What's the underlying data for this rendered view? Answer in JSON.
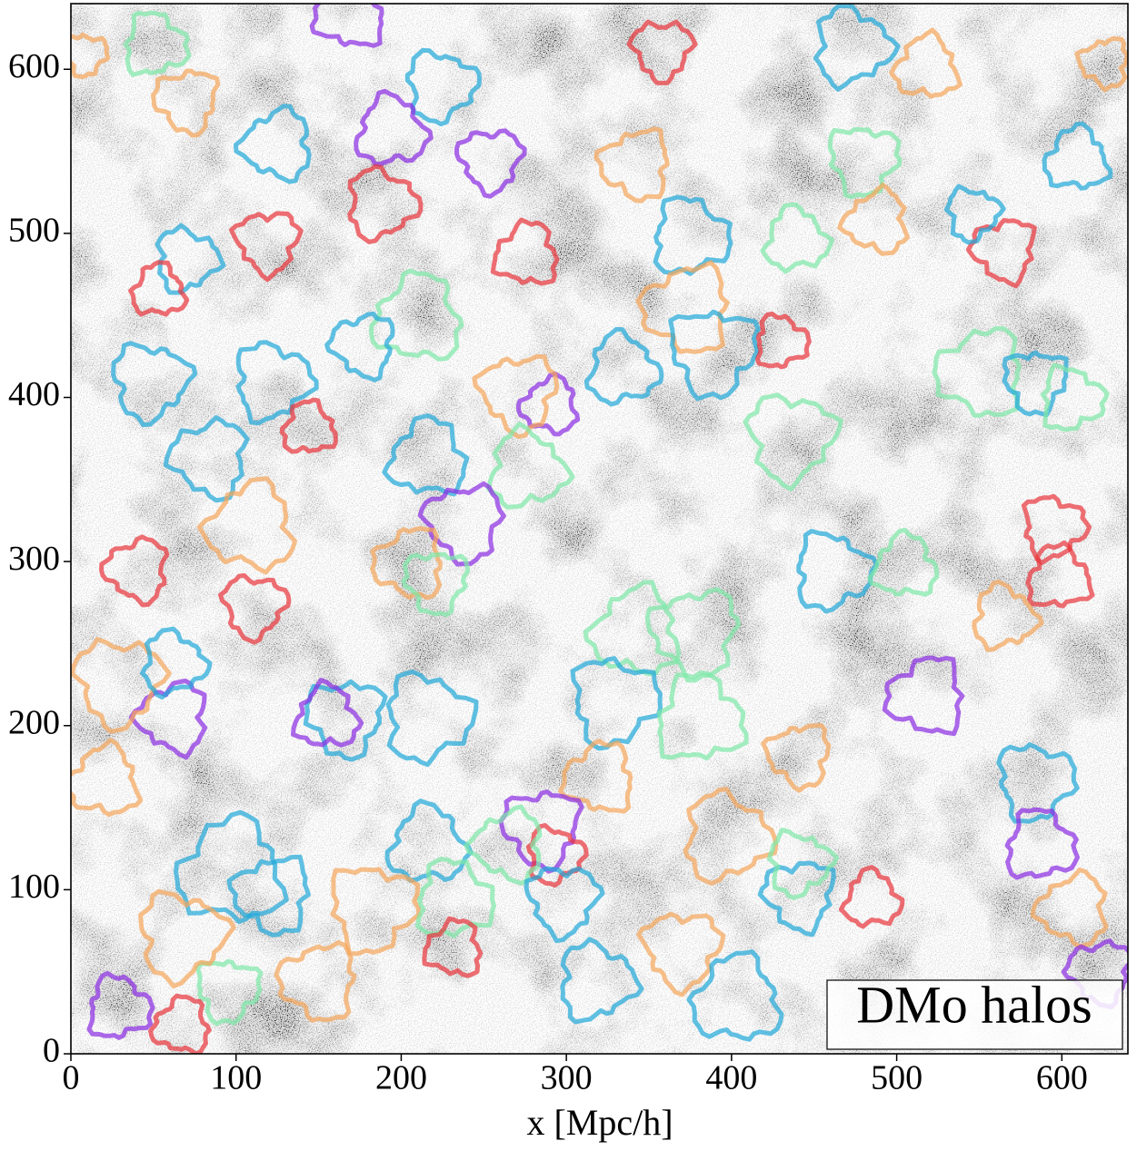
{
  "chart_data": {
    "type": "halo-map",
    "xlabel": "x [Mpc/h]",
    "annotation": "DMo halos",
    "xlim": [
      0,
      640
    ],
    "ylim": [
      0,
      640
    ],
    "xticks": [
      0,
      100,
      200,
      300,
      400,
      500,
      600
    ],
    "yticks": [
      0,
      100,
      200,
      300,
      400,
      500,
      600
    ],
    "halos": [
      {
        "x": 358,
        "y": 612,
        "r": 17,
        "color": "#e8333a"
      },
      {
        "x": 473,
        "y": 614,
        "r": 22,
        "color": "#1fa8d8"
      },
      {
        "x": 518,
        "y": 601,
        "r": 18,
        "color": "#f5a55a"
      },
      {
        "x": 626,
        "y": 604,
        "r": 14,
        "color": "#f5a55a"
      },
      {
        "x": 9,
        "y": 609,
        "r": 12,
        "color": "#f5a55a"
      },
      {
        "x": 51,
        "y": 615,
        "r": 18,
        "color": "#7de8a8"
      },
      {
        "x": 169,
        "y": 634,
        "r": 20,
        "color": "#8a2be2"
      },
      {
        "x": 70,
        "y": 581,
        "r": 18,
        "color": "#f5a55a"
      },
      {
        "x": 224,
        "y": 590,
        "r": 20,
        "color": "#1fa8d8"
      },
      {
        "x": 194,
        "y": 562,
        "r": 20,
        "color": "#8a2be2"
      },
      {
        "x": 125,
        "y": 554,
        "r": 20,
        "color": "#1fa8d8"
      },
      {
        "x": 254,
        "y": 545,
        "r": 18,
        "color": "#8a2be2"
      },
      {
        "x": 188,
        "y": 518,
        "r": 20,
        "color": "#e8333a"
      },
      {
        "x": 609,
        "y": 545,
        "r": 18,
        "color": "#1fa8d8"
      },
      {
        "x": 342,
        "y": 542,
        "r": 20,
        "color": "#f5a55a"
      },
      {
        "x": 480,
        "y": 545,
        "r": 20,
        "color": "#7de8a8"
      },
      {
        "x": 375,
        "y": 498,
        "r": 22,
        "color": "#1fa8d8"
      },
      {
        "x": 276,
        "y": 487,
        "r": 18,
        "color": "#e8333a"
      },
      {
        "x": 565,
        "y": 490,
        "r": 18,
        "color": "#e8333a"
      },
      {
        "x": 546,
        "y": 512,
        "r": 15,
        "color": "#1fa8d8"
      },
      {
        "x": 439,
        "y": 496,
        "r": 18,
        "color": "#7de8a8"
      },
      {
        "x": 488,
        "y": 507,
        "r": 18,
        "color": "#f5a55a"
      },
      {
        "x": 119,
        "y": 495,
        "r": 18,
        "color": "#e8333a"
      },
      {
        "x": 70,
        "y": 484,
        "r": 18,
        "color": "#1fa8d8"
      },
      {
        "x": 53,
        "y": 465,
        "r": 15,
        "color": "#e8333a"
      },
      {
        "x": 373,
        "y": 454,
        "r": 25,
        "color": "#f5a55a"
      },
      {
        "x": 389,
        "y": 428,
        "r": 25,
        "color": "#1fa8d8"
      },
      {
        "x": 430,
        "y": 434,
        "r": 15,
        "color": "#e8333a"
      },
      {
        "x": 210,
        "y": 448,
        "r": 25,
        "color": "#7de8a8"
      },
      {
        "x": 177,
        "y": 432,
        "r": 18,
        "color": "#1fa8d8"
      },
      {
        "x": 48,
        "y": 410,
        "r": 22,
        "color": "#1fa8d8"
      },
      {
        "x": 334,
        "y": 417,
        "r": 20,
        "color": "#1fa8d8"
      },
      {
        "x": 290,
        "y": 395,
        "r": 16,
        "color": "#8a2be2"
      },
      {
        "x": 271,
        "y": 403,
        "r": 22,
        "color": "#f5a55a"
      },
      {
        "x": 122,
        "y": 410,
        "r": 22,
        "color": "#1fa8d8"
      },
      {
        "x": 144,
        "y": 381,
        "r": 15,
        "color": "#e8333a"
      },
      {
        "x": 551,
        "y": 415,
        "r": 25,
        "color": "#7de8a8"
      },
      {
        "x": 584,
        "y": 410,
        "r": 18,
        "color": "#1fa8d8"
      },
      {
        "x": 606,
        "y": 399,
        "r": 18,
        "color": "#7de8a8"
      },
      {
        "x": 216,
        "y": 363,
        "r": 22,
        "color": "#1fa8d8"
      },
      {
        "x": 84,
        "y": 363,
        "r": 22,
        "color": "#1fa8d8"
      },
      {
        "x": 436,
        "y": 376,
        "r": 25,
        "color": "#7de8a8"
      },
      {
        "x": 276,
        "y": 356,
        "r": 22,
        "color": "#7de8a8"
      },
      {
        "x": 109,
        "y": 321,
        "r": 25,
        "color": "#f5a55a"
      },
      {
        "x": 238,
        "y": 324,
        "r": 22,
        "color": "#8a2be2"
      },
      {
        "x": 595,
        "y": 321,
        "r": 18,
        "color": "#e8333a"
      },
      {
        "x": 598,
        "y": 290,
        "r": 18,
        "color": "#e8333a"
      },
      {
        "x": 205,
        "y": 299,
        "r": 20,
        "color": "#f5a55a"
      },
      {
        "x": 221,
        "y": 288,
        "r": 18,
        "color": "#7de8a8"
      },
      {
        "x": 461,
        "y": 294,
        "r": 22,
        "color": "#1fa8d8"
      },
      {
        "x": 505,
        "y": 297,
        "r": 18,
        "color": "#7de8a8"
      },
      {
        "x": 40,
        "y": 295,
        "r": 18,
        "color": "#e8333a"
      },
      {
        "x": 111,
        "y": 273,
        "r": 18,
        "color": "#e8333a"
      },
      {
        "x": 565,
        "y": 266,
        "r": 18,
        "color": "#f5a55a"
      },
      {
        "x": 342,
        "y": 257,
        "r": 25,
        "color": "#7de8a8"
      },
      {
        "x": 378,
        "y": 257,
        "r": 25,
        "color": "#7de8a8"
      },
      {
        "x": 329,
        "y": 215,
        "r": 25,
        "color": "#1fa8d8"
      },
      {
        "x": 381,
        "y": 204,
        "r": 25,
        "color": "#7de8a8"
      },
      {
        "x": 518,
        "y": 218,
        "r": 22,
        "color": "#8a2be2"
      },
      {
        "x": 166,
        "y": 205,
        "r": 22,
        "color": "#1fa8d8"
      },
      {
        "x": 216,
        "y": 205,
        "r": 25,
        "color": "#1fa8d8"
      },
      {
        "x": 155,
        "y": 205,
        "r": 18,
        "color": "#8a2be2"
      },
      {
        "x": 62,
        "y": 205,
        "r": 20,
        "color": "#8a2be2"
      },
      {
        "x": 29,
        "y": 227,
        "r": 25,
        "color": "#f5a55a"
      },
      {
        "x": 62,
        "y": 238,
        "r": 18,
        "color": "#1fa8d8"
      },
      {
        "x": 20,
        "y": 166,
        "r": 20,
        "color": "#f5a55a"
      },
      {
        "x": 441,
        "y": 182,
        "r": 18,
        "color": "#f5a55a"
      },
      {
        "x": 584,
        "y": 166,
        "r": 22,
        "color": "#1fa8d8"
      },
      {
        "x": 587,
        "y": 127,
        "r": 20,
        "color": "#8a2be2"
      },
      {
        "x": 320,
        "y": 168,
        "r": 20,
        "color": "#f5a55a"
      },
      {
        "x": 285,
        "y": 138,
        "r": 22,
        "color": "#8a2be2"
      },
      {
        "x": 293,
        "y": 121,
        "r": 16,
        "color": "#e8333a"
      },
      {
        "x": 216,
        "y": 127,
        "r": 22,
        "color": "#1fa8d8"
      },
      {
        "x": 265,
        "y": 127,
        "r": 20,
        "color": "#7de8a8"
      },
      {
        "x": 298,
        "y": 94,
        "r": 20,
        "color": "#1fa8d8"
      },
      {
        "x": 397,
        "y": 132,
        "r": 25,
        "color": "#f5a55a"
      },
      {
        "x": 97,
        "y": 111,
        "r": 30,
        "color": "#1fa8d8"
      },
      {
        "x": 122,
        "y": 97,
        "r": 22,
        "color": "#1fa8d8"
      },
      {
        "x": 183,
        "y": 89,
        "r": 25,
        "color": "#f5a55a"
      },
      {
        "x": 232,
        "y": 94,
        "r": 22,
        "color": "#7de8a8"
      },
      {
        "x": 232,
        "y": 64,
        "r": 16,
        "color": "#e8333a"
      },
      {
        "x": 441,
        "y": 97,
        "r": 20,
        "color": "#1fa8d8"
      },
      {
        "x": 441,
        "y": 116,
        "r": 18,
        "color": "#7de8a8"
      },
      {
        "x": 485,
        "y": 94,
        "r": 16,
        "color": "#e8333a"
      },
      {
        "x": 607,
        "y": 88,
        "r": 20,
        "color": "#f5a55a"
      },
      {
        "x": 370,
        "y": 64,
        "r": 22,
        "color": "#f5a55a"
      },
      {
        "x": 318,
        "y": 44,
        "r": 22,
        "color": "#1fa8d8"
      },
      {
        "x": 403,
        "y": 33,
        "r": 25,
        "color": "#1fa8d8"
      },
      {
        "x": 150,
        "y": 44,
        "r": 22,
        "color": "#f5a55a"
      },
      {
        "x": 95,
        "y": 39,
        "r": 18,
        "color": "#7de8a8"
      },
      {
        "x": 29,
        "y": 28,
        "r": 18,
        "color": "#8a2be2"
      },
      {
        "x": 67,
        "y": 17,
        "r": 16,
        "color": "#e8333a"
      },
      {
        "x": 623,
        "y": 50,
        "r": 18,
        "color": "#8a2be2"
      },
      {
        "x": 67,
        "y": 72,
        "r": 25,
        "color": "#f5a55a"
      }
    ]
  }
}
